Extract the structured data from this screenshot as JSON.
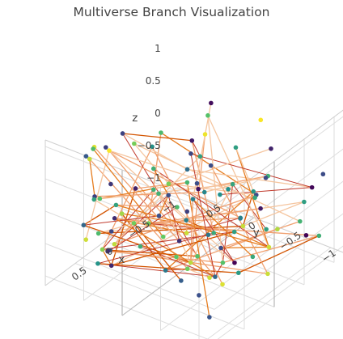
{
  "chart_data": {
    "type": "scatter3d",
    "title": "Multiverse Branch Visualization",
    "xlabel": "x",
    "ylabel": "y",
    "zlabel": "z",
    "xticks": [
      "−1",
      "−0.5",
      "0",
      "0.5"
    ],
    "yticks": [
      "−1",
      "−0.5",
      "0",
      "0.5"
    ],
    "zticks": [
      "−1",
      "−0.5",
      "0",
      "0.5",
      "1"
    ],
    "xlim": [
      -1.2,
      1.0
    ],
    "ylim": [
      -1.2,
      1.0
    ],
    "zlim": [
      -1.15,
      1.1
    ],
    "grid": true,
    "legend": "none",
    "marker_colorscale": "viridis",
    "line_colors": [
      "#c0392b",
      "#d35400",
      "#e67e22",
      "#f0a070",
      "#f5c6a0"
    ],
    "node_count": 100,
    "edge_count": 110
  }
}
